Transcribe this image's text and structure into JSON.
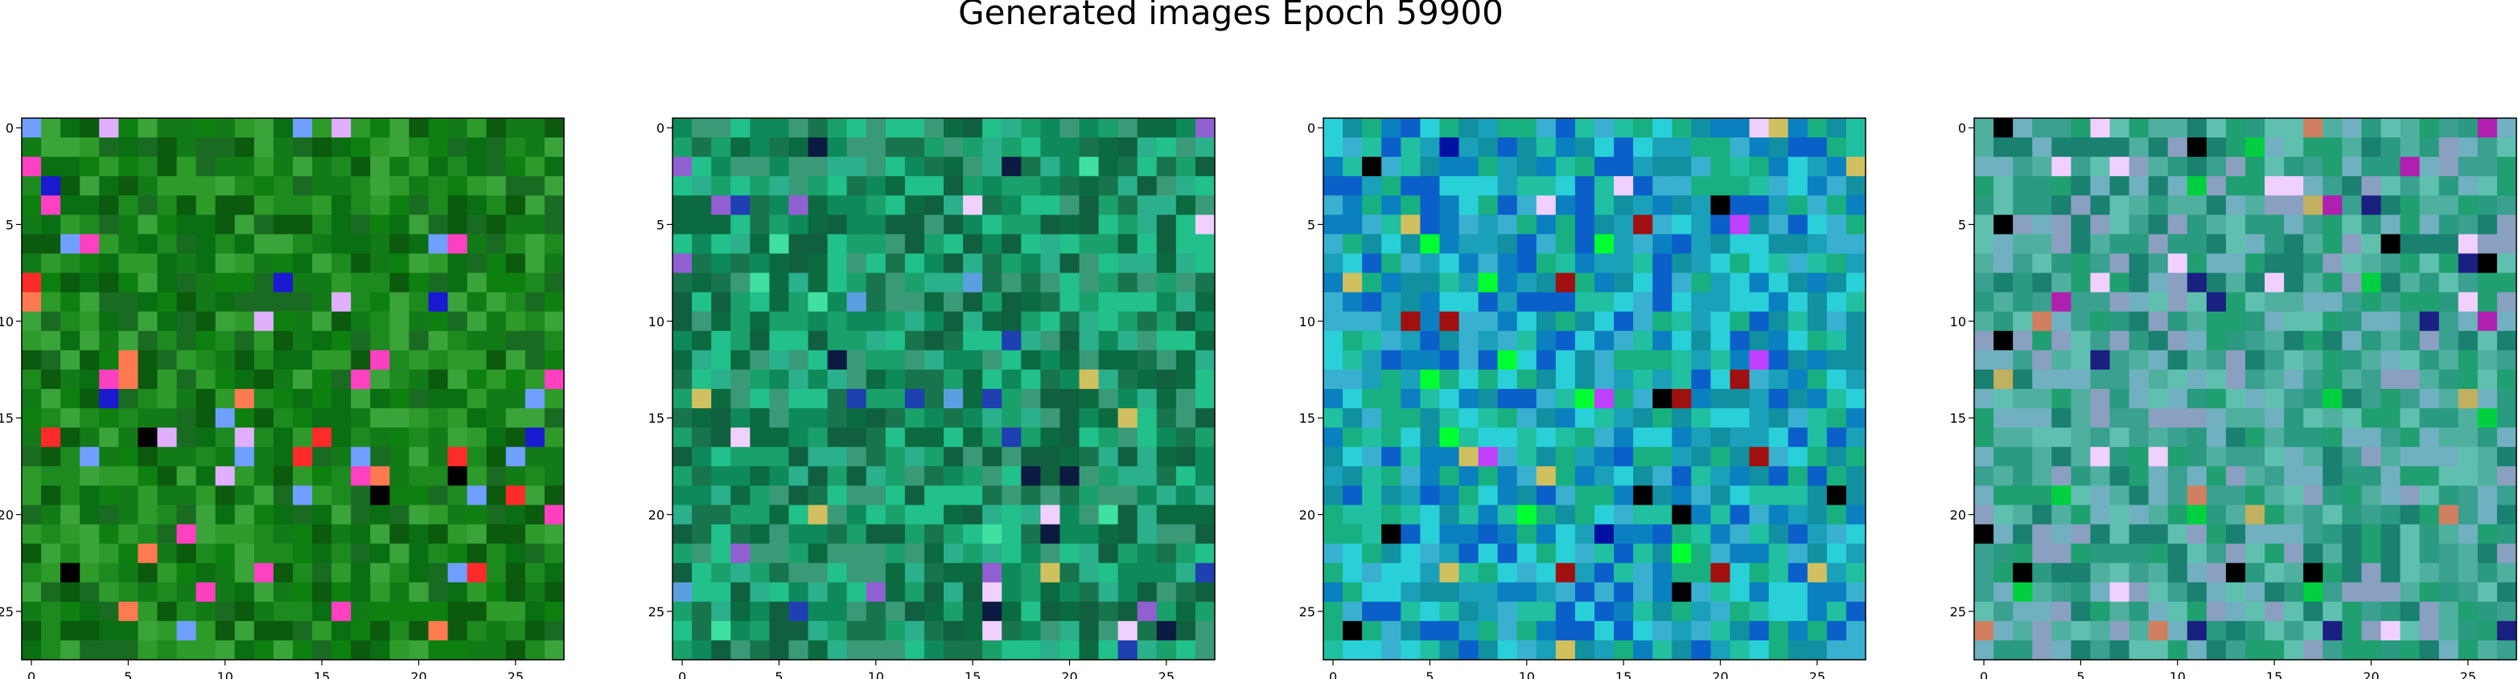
{
  "title": "Generated images Epoch 59900",
  "chart_data": [
    {
      "type": "heatmap",
      "xlim": [
        -0.5,
        27.5
      ],
      "ylim": [
        27.5,
        -0.5
      ],
      "xticks": [
        "0",
        "5",
        "10",
        "15",
        "20",
        "25"
      ],
      "yticks": [
        "0",
        "5",
        "10",
        "15",
        "20",
        "25"
      ],
      "palette": {
        "base": [
          "#0a6e12",
          "#1d8a1f",
          "#2e9a2a",
          "#137a18",
          "#0b5a0e",
          "#3aa33a",
          "#1a6b22",
          "#0d8010"
        ],
        "accents": [
          "#ff2a2a",
          "#ff7a50",
          "#1a1ad0",
          "#6fa0ff",
          "#ff40c0",
          "#e0b0ff",
          "#000000"
        ]
      },
      "grid": "off"
    },
    {
      "type": "heatmap",
      "xlim": [
        -0.5,
        27.5
      ],
      "ylim": [
        27.5,
        -0.5
      ],
      "xticks": [
        "0",
        "5",
        "10",
        "15",
        "20",
        "25"
      ],
      "yticks": [
        "0",
        "5",
        "10",
        "15",
        "20",
        "25"
      ],
      "palette": {
        "base": [
          "#0e8a5a",
          "#1aa06a",
          "#0b6a40",
          "#2ab08a",
          "#106040",
          "#3a9a78",
          "#18744c",
          "#22c08a"
        ],
        "accents": [
          "#1e40b0",
          "#5aa0e0",
          "#0a1a40",
          "#f0d0ff",
          "#9060d0",
          "#d0c060",
          "#40e0a0"
        ]
      },
      "grid": "off"
    },
    {
      "type": "heatmap",
      "xlim": [
        -0.5,
        27.5
      ],
      "ylim": [
        27.5,
        -0.5
      ],
      "xticks": [
        "0",
        "5",
        "10",
        "15",
        "20",
        "25"
      ],
      "yticks": [
        "0",
        "5",
        "10",
        "15",
        "20",
        "25"
      ],
      "palette": {
        "base": [
          "#1aa0b8",
          "#2ad0d8",
          "#0a80c0",
          "#18b080",
          "#3ab0d0",
          "#0a60c8",
          "#20c0a0",
          "#1090a0"
        ],
        "accents": [
          "#0010a0",
          "#000000",
          "#a01010",
          "#f0d0ff",
          "#c040ff",
          "#d0c060",
          "#00ff30"
        ]
      },
      "grid": "off"
    },
    {
      "type": "heatmap",
      "xlim": [
        -0.5,
        27.5
      ],
      "ylim": [
        27.5,
        -0.5
      ],
      "xticks": [
        "0",
        "5",
        "10",
        "15",
        "20",
        "25"
      ],
      "yticks": [
        "0",
        "5",
        "10",
        "15",
        "20",
        "25"
      ],
      "palette": {
        "base": [
          "#2a9a80",
          "#50b0a0",
          "#1a8070",
          "#70b0c0",
          "#3aa090",
          "#8aa0c0",
          "#20a070",
          "#60c0b0"
        ],
        "accents": [
          "#1a2080",
          "#000000",
          "#b020b0",
          "#f0d0ff",
          "#d08060",
          "#c0b060",
          "#00d040"
        ]
      },
      "grid": "off"
    }
  ]
}
